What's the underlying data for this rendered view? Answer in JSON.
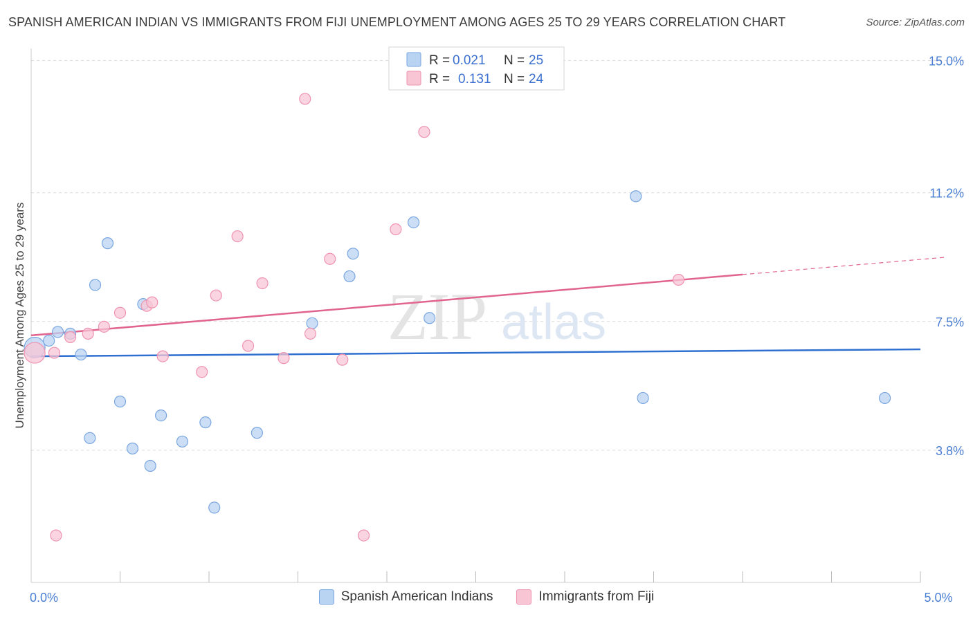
{
  "title": "SPANISH AMERICAN INDIAN VS IMMIGRANTS FROM FIJI UNEMPLOYMENT AMONG AGES 25 TO 29 YEARS CORRELATION CHART",
  "source": "Source: ZipAtlas.com",
  "watermark": {
    "zip": "ZIP",
    "atlas": "atlas"
  },
  "colors": {
    "blue_fill": "#b9d3f3",
    "blue_stroke": "#7aa6e0",
    "blue_line": "#2f6fcf",
    "pink_fill": "#f8c5d5",
    "pink_stroke": "#ee93b0",
    "pink_line": "#e0648e",
    "grid": "#d9d9d9",
    "axis_label": "#4a7fd4"
  },
  "legend": {
    "rows": [
      {
        "r_label": "R =",
        "r_value": "0.021",
        "n_label": "N =",
        "n_value": "25"
      },
      {
        "r_label": "R =",
        "r_value": "0.131",
        "n_label": "N =",
        "n_value": "24"
      }
    ]
  },
  "bottom_legend": {
    "series1": "Spanish American Indians",
    "series2": "Immigrants from Fiji"
  },
  "chart_data": {
    "type": "scatter",
    "title": "SPANISH AMERICAN INDIAN VS IMMIGRANTS FROM FIJI UNEMPLOYMENT AMONG AGES 25 TO 29 YEARS CORRELATION CHART",
    "xlabel": "",
    "ylabel": "Unemployment Among Ages 25 to 29 years",
    "xlim": [
      0,
      5.0
    ],
    "ylim": [
      0,
      15.35
    ],
    "x_tick_labels": [
      {
        "value": 0,
        "label": "0.0%"
      },
      {
        "value": 5.0,
        "label": "5.0%"
      }
    ],
    "y_tick_labels": [
      {
        "value": 3.8,
        "label": "3.8%"
      },
      {
        "value": 7.5,
        "label": "7.5%"
      },
      {
        "value": 11.2,
        "label": "11.2%"
      },
      {
        "value": 15.0,
        "label": "15.0%"
      }
    ],
    "series": [
      {
        "name": "Spanish American Indians",
        "color": "blue",
        "x": [
          0.02,
          0.1,
          0.15,
          0.22,
          0.28,
          0.33,
          0.43,
          0.57,
          0.63,
          0.67,
          0.73,
          0.85,
          0.98,
          1.03,
          1.27,
          1.58,
          1.79,
          1.81,
          2.15,
          2.24,
          3.4,
          3.44,
          4.8,
          0.36,
          0.5
        ],
        "y": [
          6.75,
          6.95,
          7.2,
          7.15,
          6.55,
          4.15,
          9.75,
          3.85,
          8.0,
          3.35,
          4.8,
          4.05,
          4.6,
          2.15,
          4.3,
          7.45,
          8.8,
          9.45,
          10.35,
          7.6,
          11.1,
          5.3,
          5.3,
          8.55,
          5.2
        ]
      },
      {
        "name": "Immigrants from Fiji",
        "color": "pink",
        "x": [
          0.02,
          0.13,
          0.22,
          0.32,
          0.41,
          0.5,
          0.65,
          0.68,
          0.74,
          0.96,
          1.04,
          1.16,
          1.22,
          1.3,
          1.42,
          1.54,
          1.57,
          1.68,
          1.75,
          1.87,
          2.05,
          2.21,
          3.64,
          0.14
        ],
        "y": [
          6.6,
          6.6,
          7.05,
          7.15,
          7.35,
          7.75,
          7.95,
          8.05,
          6.5,
          6.05,
          8.25,
          9.95,
          6.8,
          8.6,
          6.45,
          13.9,
          7.15,
          9.3,
          6.4,
          1.35,
          10.15,
          12.95,
          8.7,
          1.35
        ]
      }
    ],
    "trend_lines": [
      {
        "series": "Spanish American Indians",
        "x": [
          0,
          5.0
        ],
        "y": [
          6.5,
          6.7
        ],
        "style": "solid"
      },
      {
        "series": "Immigrants from Fiji",
        "x": [
          0,
          4.0
        ],
        "y": [
          7.1,
          8.85
        ],
        "style": "solid"
      },
      {
        "series": "Immigrants from Fiji",
        "x": [
          4.0,
          5.15
        ],
        "y": [
          8.85,
          9.35
        ],
        "style": "dashed"
      }
    ]
  }
}
